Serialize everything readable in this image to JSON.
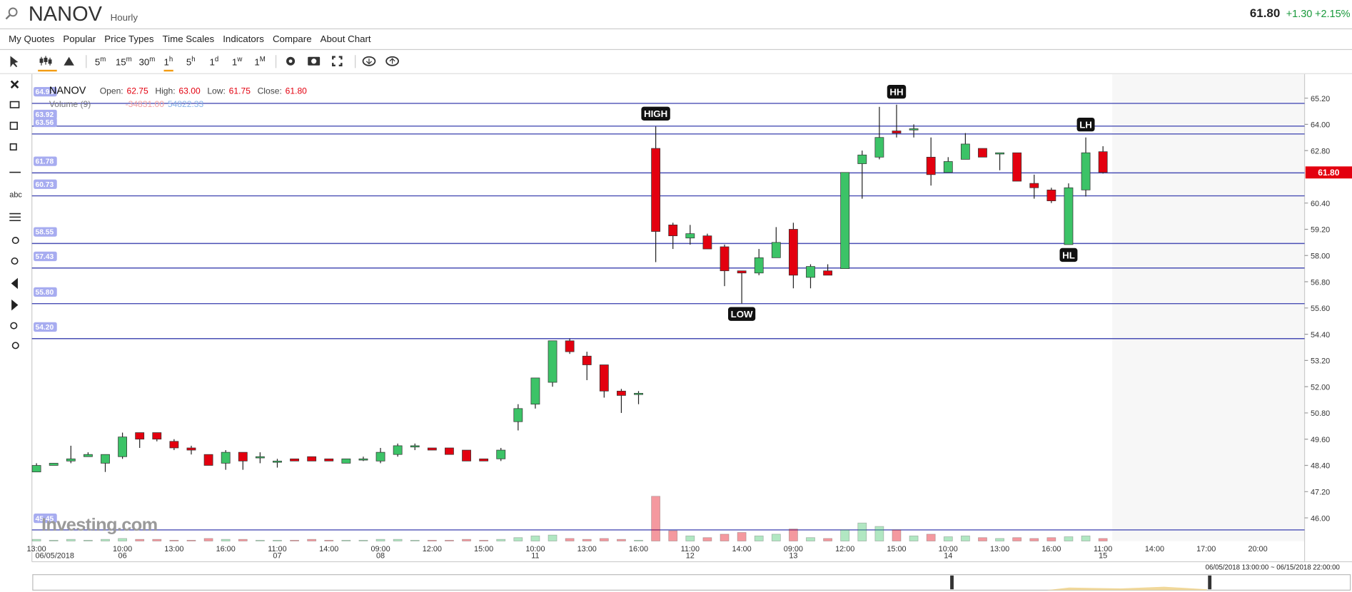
{
  "header": {
    "symbol": "NANOV",
    "interval": "Hourly",
    "last": "61.80",
    "change": "+1.30",
    "change_pct": "+2.15%"
  },
  "menu": [
    "My Quotes",
    "Popular",
    "Price Types",
    "Time Scales",
    "Indicators",
    "Compare",
    "About Chart"
  ],
  "timeframes": [
    [
      "5",
      "m"
    ],
    [
      "15",
      "m"
    ],
    [
      "30",
      "m"
    ],
    [
      "1",
      "h"
    ],
    [
      "5",
      "h"
    ],
    [
      "1",
      "d"
    ],
    [
      "1",
      "w"
    ],
    [
      "1",
      "M"
    ]
  ],
  "active_timeframe": 3,
  "left_toolbar": {
    "text_tool": "abc"
  },
  "range": "06/05/2018 13:00:00 ~ 06/15/2018 22:00:00",
  "logo": "Investing.com",
  "chart_data": {
    "type": "candlestick",
    "legend": {
      "name": "NANOV",
      "fields": [
        {
          "label": "Open:",
          "value": "62.75"
        },
        {
          "label": "High:",
          "value": "63.00"
        },
        {
          "label": "Low:",
          "value": "61.75"
        },
        {
          "label": "Close:",
          "value": "61.80"
        }
      ],
      "volume_name": "Volume (9)",
      "volume_values": [
        "-34831.00",
        "54822.33"
      ]
    },
    "categories": [
      "13:00",
      null,
      null,
      null,
      null,
      "10:00",
      null,
      null,
      "13:00",
      null,
      null,
      "16:00",
      null,
      null,
      "11:00",
      null,
      null,
      "14:00",
      null,
      null,
      "09:00",
      null,
      null,
      "12:00",
      null,
      null,
      "15:00",
      null,
      null,
      "10:00",
      null,
      null,
      "13:00",
      null,
      null,
      "16:00",
      null,
      null,
      "11:00",
      null,
      null,
      "14:00",
      null,
      null,
      "09:00",
      null,
      null,
      "12:00",
      null,
      null,
      "15:00",
      null,
      null,
      "10:00",
      null,
      null,
      "13:00",
      null,
      null,
      "16:00",
      null,
      null,
      "11:00",
      null,
      null,
      "14:00",
      null,
      null,
      "17:00",
      null,
      null,
      "20:00"
    ],
    "dates": [
      "06/05/2018",
      null,
      null,
      null,
      null,
      "06",
      null,
      null,
      null,
      null,
      null,
      null,
      null,
      null,
      "07",
      null,
      null,
      null,
      null,
      null,
      "08",
      null,
      null,
      null,
      null,
      null,
      null,
      null,
      null,
      "11",
      null,
      null,
      null,
      null,
      null,
      null,
      null,
      null,
      "12",
      null,
      null,
      null,
      null,
      null,
      "13",
      null,
      null,
      null,
      null,
      null,
      null,
      null,
      null,
      "14",
      null,
      null,
      null,
      null,
      null,
      null,
      null,
      null,
      "15",
      null,
      null,
      null,
      null,
      null,
      null,
      null,
      null,
      null
    ],
    "open": [
      48.1,
      48.4,
      48.6,
      48.8,
      48.5,
      48.8,
      49.9,
      49.9,
      49.5,
      49.2,
      48.9,
      48.5,
      49.0,
      48.8,
      48.6,
      48.7,
      48.8,
      48.7,
      48.5,
      48.7,
      48.6,
      48.9,
      49.3,
      49.2,
      49.2,
      49.1,
      48.7,
      48.7,
      50.4,
      51.2,
      52.2,
      54.1,
      53.4,
      53.0,
      51.8,
      51.7,
      62.9,
      59.4,
      58.8,
      58.9,
      58.4,
      57.3,
      57.2,
      57.9,
      59.2,
      57.0,
      57.3,
      57.4,
      62.2,
      62.5,
      63.7,
      63.8,
      62.5,
      61.8,
      62.4,
      62.9,
      62.7,
      62.7,
      61.3,
      61.0,
      58.5,
      61.0,
      62.75,
      null,
      null,
      null,
      null,
      null,
      null,
      null,
      null,
      null
    ],
    "high": [
      48.5,
      48.5,
      49.3,
      49.0,
      48.9,
      49.9,
      49.9,
      49.9,
      49.6,
      49.3,
      48.9,
      49.1,
      49.0,
      49.0,
      48.7,
      48.7,
      48.8,
      48.7,
      48.7,
      48.8,
      49.2,
      49.4,
      49.4,
      49.2,
      49.2,
      49.1,
      48.7,
      49.2,
      51.2,
      52.4,
      54.1,
      54.2,
      53.6,
      53.0,
      51.9,
      51.8,
      63.9,
      59.5,
      59.4,
      59.0,
      58.5,
      57.3,
      58.3,
      59.3,
      59.5,
      57.6,
      57.6,
      61.8,
      62.8,
      64.8,
      64.9,
      64.0,
      63.4,
      62.5,
      63.6,
      62.9,
      62.7,
      62.7,
      61.7,
      61.1,
      61.3,
      63.4,
      63.0,
      null,
      null,
      null,
      null,
      null,
      null,
      null,
      null,
      null
    ],
    "low": [
      48.1,
      48.4,
      48.5,
      48.8,
      48.1,
      48.7,
      49.2,
      49.5,
      49.1,
      48.9,
      48.4,
      48.2,
      48.2,
      48.5,
      48.3,
      48.6,
      48.6,
      48.6,
      48.5,
      48.6,
      48.5,
      48.8,
      49.1,
      49.1,
      48.9,
      48.6,
      48.6,
      48.6,
      50.0,
      51.0,
      52.0,
      53.5,
      52.3,
      51.5,
      50.8,
      51.2,
      57.7,
      58.3,
      58.5,
      58.3,
      56.6,
      55.8,
      57.1,
      57.9,
      56.5,
      56.5,
      57.1,
      57.4,
      60.6,
      62.4,
      63.4,
      63.4,
      61.2,
      61.8,
      62.4,
      62.5,
      61.9,
      61.4,
      60.6,
      60.4,
      58.5,
      60.7,
      61.75,
      null,
      null,
      null,
      null,
      null,
      null,
      null,
      null,
      null
    ],
    "close": [
      48.4,
      48.5,
      48.7,
      48.9,
      48.9,
      49.7,
      49.6,
      49.6,
      49.2,
      49.1,
      48.4,
      49.0,
      48.6,
      48.8,
      48.6,
      48.6,
      48.6,
      48.6,
      48.7,
      48.7,
      49.0,
      49.3,
      49.3,
      49.1,
      48.9,
      48.6,
      48.6,
      49.1,
      51.0,
      52.4,
      54.1,
      53.6,
      53.0,
      51.8,
      51.6,
      51.7,
      59.1,
      58.9,
      59.0,
      58.3,
      57.3,
      57.2,
      57.9,
      58.6,
      57.1,
      57.5,
      57.1,
      61.8,
      62.6,
      63.4,
      63.6,
      63.8,
      61.7,
      62.3,
      63.1,
      62.5,
      62.7,
      61.4,
      61.1,
      60.5,
      61.1,
      62.7,
      61.8,
      null,
      null,
      null,
      null,
      null,
      null,
      null,
      null,
      null
    ],
    "volume": [
      2000,
      1000,
      2000,
      1000,
      2000,
      3000,
      2000,
      2000,
      1000,
      1000,
      3000,
      2000,
      2000,
      1000,
      1000,
      1000,
      2000,
      1000,
      1000,
      1000,
      2000,
      2000,
      1000,
      1000,
      1000,
      2000,
      1000,
      2000,
      4000,
      6000,
      7000,
      3000,
      2000,
      3000,
      2000,
      1000,
      52000,
      12000,
      6000,
      4000,
      8000,
      10000,
      6000,
      8000,
      14000,
      4000,
      3000,
      13000,
      21000,
      17000,
      13000,
      6000,
      8000,
      5000,
      6000,
      4000,
      3000,
      4000,
      3000,
      4000,
      5000,
      6000,
      3000,
      null,
      null,
      null,
      null,
      null,
      null,
      null,
      null,
      null
    ],
    "up_color": "#3cc367",
    "down_color": "#e3000f",
    "level_color": "#4a4fb5",
    "ylim": [
      44.94,
      66.22
    ],
    "yticks": [
      {
        "value": 65.2,
        "label": "65.20"
      },
      {
        "value": 64,
        "label": "64.00"
      },
      {
        "value": 62.8,
        "label": "62.80"
      },
      {
        "value": 60.4,
        "label": "60.40"
      },
      {
        "value": 59.2,
        "label": "59.20"
      },
      {
        "value": 58,
        "label": "58.00"
      },
      {
        "value": 56.8,
        "label": "56.80"
      },
      {
        "value": 55.6,
        "label": "55.60"
      },
      {
        "value": 54.4,
        "label": "54.40"
      },
      {
        "value": 53.2,
        "label": "53.20"
      },
      {
        "value": 52,
        "label": "52.00"
      },
      {
        "value": 50.8,
        "label": "50.80"
      },
      {
        "value": 49.6,
        "label": "49.60"
      },
      {
        "value": 48.4,
        "label": "48.40"
      },
      {
        "value": 47.2,
        "label": "47.20"
      },
      {
        "value": 46,
        "label": "46.00"
      }
    ],
    "grid": false,
    "levels": [
      {
        "value": 64.96,
        "label": "64.96"
      },
      {
        "value": 63.92,
        "label": "63.92"
      },
      {
        "value": 63.56,
        "label": "63.56"
      },
      {
        "value": 61.78,
        "label": "61.78"
      },
      {
        "value": 60.73,
        "label": "60.73"
      },
      {
        "value": 58.55,
        "label": "58.55"
      },
      {
        "value": 57.43,
        "label": "57.43"
      },
      {
        "value": 55.8,
        "label": "55.80"
      },
      {
        "value": 54.2,
        "label": "54.20"
      },
      {
        "value": 45.45,
        "label": "45.45"
      }
    ],
    "annotations": [
      {
        "text": "HIGH",
        "candle": 36,
        "side": "above"
      },
      {
        "text": "LOW",
        "candle": 41,
        "side": "below"
      },
      {
        "text": "HH",
        "candle": 50,
        "side": "above"
      },
      {
        "text": "LH",
        "candle": 61,
        "side": "above"
      },
      {
        "text": "HL",
        "candle": 60,
        "side": "below"
      }
    ],
    "last_price": {
      "value": 61.8,
      "label": "61.80"
    },
    "tag_color": "#e3000f"
  }
}
